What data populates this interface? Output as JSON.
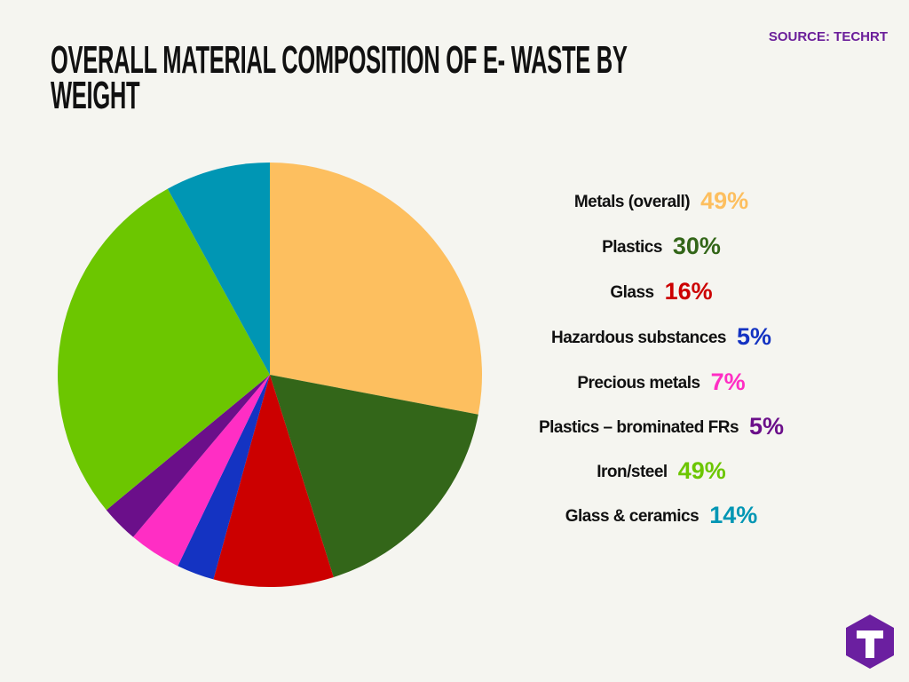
{
  "chart_data": {
    "type": "pie",
    "title": "OVERALL MATERIAL COMPOSITION OF E- WASTE BY WEIGHT",
    "source": "SOURCE: TECHRT",
    "categories": [
      "Metals (overall)",
      "Plastics",
      "Glass",
      "Hazardous substances",
      "Precious metals",
      "Plastics – brominated FRs",
      "Iron/steel",
      "Glass & ceramics"
    ],
    "values": [
      49,
      30,
      16,
      5,
      7,
      5,
      49,
      14
    ],
    "value_labels": [
      "49%",
      "30%",
      "16%",
      "5%",
      "7%",
      "5%",
      "49%",
      "14%"
    ],
    "colors": [
      "#fdbf5f",
      "#336619",
      "#cc0000",
      "#1433c2",
      "#ff2ec4",
      "#6b0f8a",
      "#6cc600",
      "#0096b4"
    ]
  }
}
